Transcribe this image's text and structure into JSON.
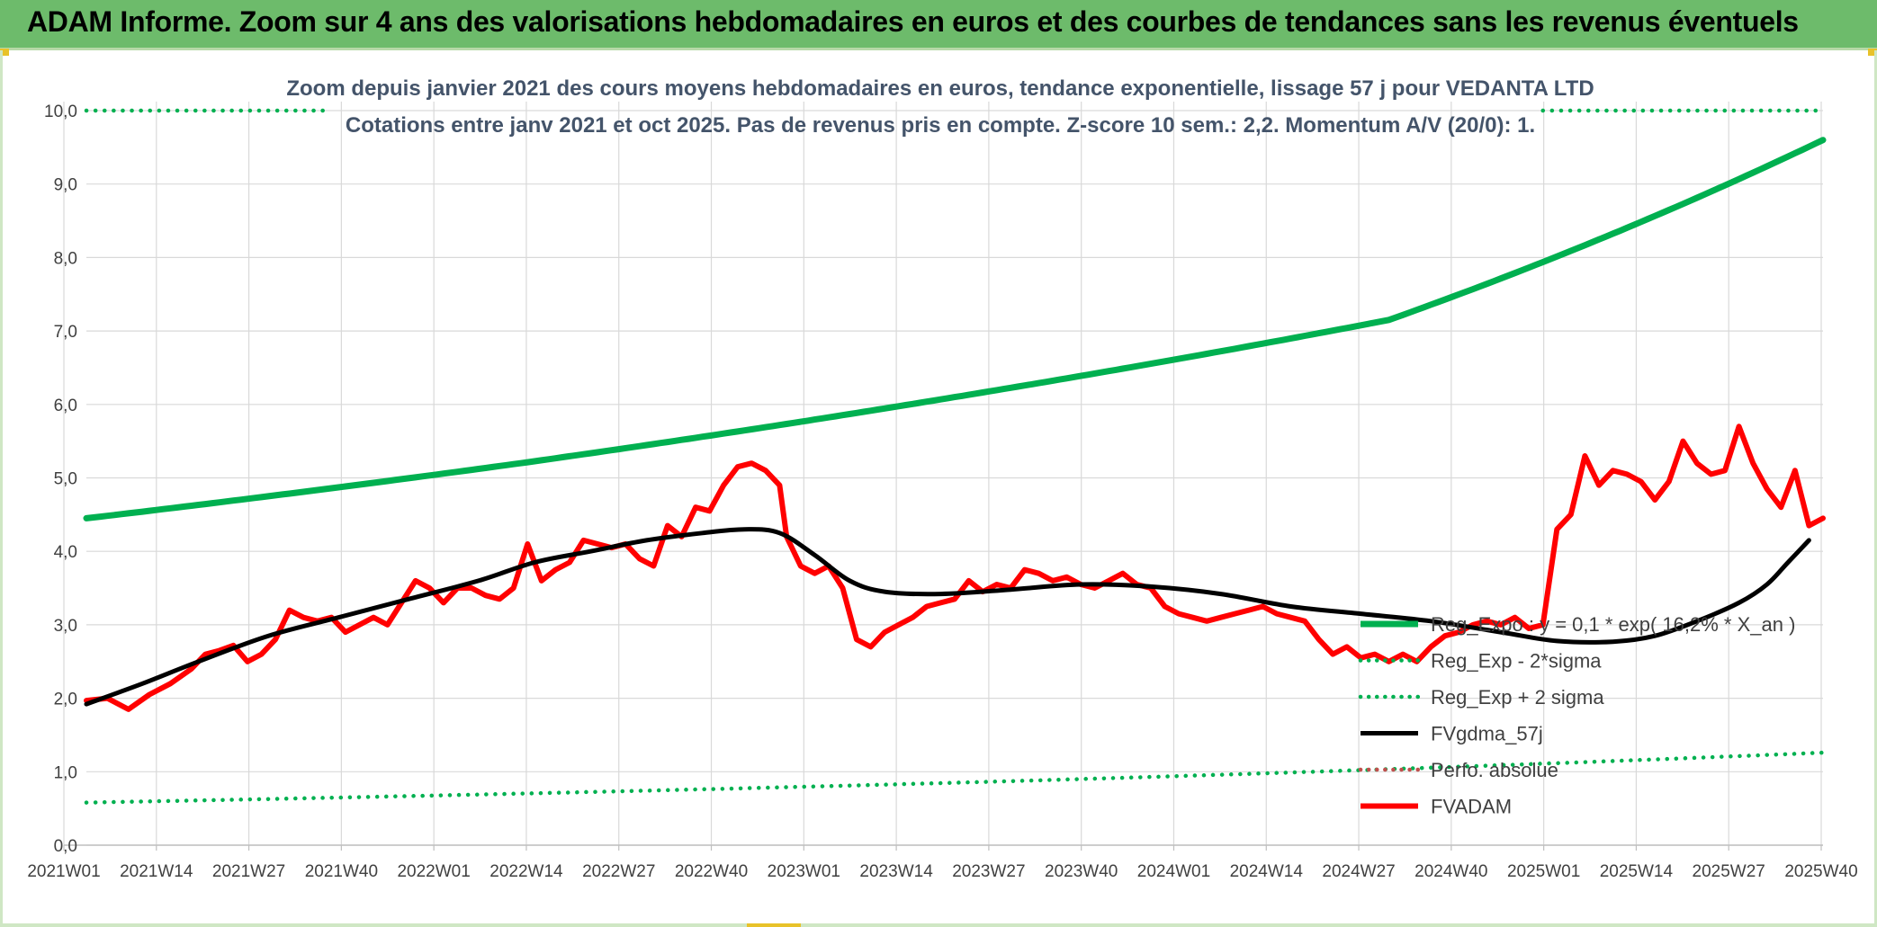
{
  "banner": {
    "title": "ADAM Informe. Zoom sur 4 ans des valorisations hebdomadaires en euros et des courbes de tendances sans les revenus éventuels"
  },
  "colors": {
    "banner": "#6dbb6b",
    "trend": "#00b050",
    "dotted": "#00b050",
    "smooth": "#000000",
    "price": "#ff0000",
    "perfo": "#c0504d",
    "grid": "#d9d9d9",
    "title_text": "#44546a",
    "axis_text": "#404040"
  },
  "chart_data": {
    "type": "line",
    "title_line1": "Zoom depuis janvier 2021 des cours moyens hebdomadaires en euros, tendance exponentielle, lissage 57 j pour VEDANTA LTD",
    "title_line2": "Cotations entre janv 2021 et oct 2025. Pas de revenus pris en compte. Z-score 10 sem.: 2,2. Momentum A/V (20/0): 1.",
    "ylim": [
      0,
      10
    ],
    "yticks": [
      "0,0",
      "1,0",
      "2,0",
      "3,0",
      "4,0",
      "5,0",
      "6,0",
      "7,0",
      "8,0",
      "9,0",
      "10,0"
    ],
    "xticks": [
      "2021W01",
      "2021W14",
      "2021W27",
      "2021W40",
      "2022W01",
      "2022W14",
      "2022W27",
      "2022W40",
      "2023W01",
      "2023W14",
      "2023W27",
      "2023W40",
      "2024W01",
      "2024W14",
      "2024W27",
      "2024W40",
      "2025W01",
      "2025W14",
      "2025W27",
      "2025W40"
    ],
    "week_count": 249,
    "legend": [
      {
        "name": "Reg_Expo : y = 0,1 * exp( 16,2% *  X_an )",
        "style": "solid-thick"
      },
      {
        "name": "Reg_Exp - 2*sigma",
        "style": "dotted"
      },
      {
        "name": "Reg_Exp + 2 sigma",
        "style": "dotted"
      },
      {
        "name": "FVgdma_57j",
        "style": "solid"
      },
      {
        "name": "Perfo. absolue",
        "style": "dotted-dark"
      },
      {
        "name": "FVADAM",
        "style": "solid-red"
      }
    ],
    "series": [
      {
        "name": "Reg_Expo",
        "keypoints": [
          [
            0,
            4.45
          ],
          [
            62,
            5.2
          ],
          [
            124,
            6.1
          ],
          [
            186,
            7.15
          ],
          [
            248,
            9.6
          ]
        ]
      },
      {
        "name": "Reg_Exp - 2*sigma",
        "keypoints": [
          [
            0,
            0.58
          ],
          [
            124,
            0.85
          ],
          [
            248,
            1.26
          ]
        ]
      },
      {
        "name": "Reg_Exp + 2 sigma",
        "keypoints": [
          [
            0,
            10.0
          ],
          [
            34,
            10.0
          ]
        ],
        "keypoints_right": [
          [
            208,
            10.0
          ],
          [
            248,
            10.0
          ]
        ]
      },
      {
        "name": "FVgdma_57j",
        "keypoints": [
          [
            0,
            1.92
          ],
          [
            8,
            2.2
          ],
          [
            16,
            2.5
          ],
          [
            26,
            2.85
          ],
          [
            36,
            3.1
          ],
          [
            46,
            3.35
          ],
          [
            56,
            3.6
          ],
          [
            64,
            3.85
          ],
          [
            72,
            4.0
          ],
          [
            80,
            4.15
          ],
          [
            88,
            4.25
          ],
          [
            94,
            4.3
          ],
          [
            99,
            4.25
          ],
          [
            104,
            3.95
          ],
          [
            109,
            3.6
          ],
          [
            114,
            3.45
          ],
          [
            122,
            3.42
          ],
          [
            132,
            3.48
          ],
          [
            142,
            3.55
          ],
          [
            152,
            3.52
          ],
          [
            162,
            3.42
          ],
          [
            172,
            3.25
          ],
          [
            182,
            3.15
          ],
          [
            192,
            3.05
          ],
          [
            202,
            2.9
          ],
          [
            210,
            2.78
          ],
          [
            218,
            2.77
          ],
          [
            224,
            2.85
          ],
          [
            230,
            3.05
          ],
          [
            236,
            3.3
          ],
          [
            240,
            3.55
          ],
          [
            243,
            3.85
          ],
          [
            246,
            4.15
          ]
        ]
      },
      {
        "name": "FVADAM",
        "keypoints": [
          [
            0,
            1.97
          ],
          [
            3,
            2.0
          ],
          [
            6,
            1.85
          ],
          [
            9,
            2.05
          ],
          [
            12,
            2.2
          ],
          [
            15,
            2.4
          ],
          [
            17,
            2.6
          ],
          [
            19,
            2.65
          ],
          [
            21,
            2.72
          ],
          [
            23,
            2.5
          ],
          [
            25,
            2.6
          ],
          [
            27,
            2.8
          ],
          [
            29,
            3.2
          ],
          [
            31,
            3.1
          ],
          [
            33,
            3.05
          ],
          [
            35,
            3.1
          ],
          [
            37,
            2.9
          ],
          [
            39,
            3.0
          ],
          [
            41,
            3.1
          ],
          [
            43,
            3.0
          ],
          [
            45,
            3.3
          ],
          [
            47,
            3.6
          ],
          [
            49,
            3.5
          ],
          [
            51,
            3.3
          ],
          [
            53,
            3.5
          ],
          [
            55,
            3.5
          ],
          [
            57,
            3.4
          ],
          [
            59,
            3.35
          ],
          [
            61,
            3.5
          ],
          [
            63,
            4.1
          ],
          [
            65,
            3.6
          ],
          [
            67,
            3.75
          ],
          [
            69,
            3.85
          ],
          [
            71,
            4.15
          ],
          [
            73,
            4.1
          ],
          [
            75,
            4.05
          ],
          [
            77,
            4.1
          ],
          [
            79,
            3.9
          ],
          [
            81,
            3.8
          ],
          [
            83,
            4.35
          ],
          [
            85,
            4.2
          ],
          [
            87,
            4.6
          ],
          [
            89,
            4.55
          ],
          [
            91,
            4.9
          ],
          [
            93,
            5.15
          ],
          [
            95,
            5.2
          ],
          [
            97,
            5.1
          ],
          [
            99,
            4.9
          ],
          [
            100,
            4.2
          ],
          [
            102,
            3.8
          ],
          [
            104,
            3.7
          ],
          [
            106,
            3.8
          ],
          [
            108,
            3.5
          ],
          [
            110,
            2.8
          ],
          [
            112,
            2.7
          ],
          [
            114,
            2.9
          ],
          [
            116,
            3.0
          ],
          [
            118,
            3.1
          ],
          [
            120,
            3.25
          ],
          [
            122,
            3.3
          ],
          [
            124,
            3.35
          ],
          [
            126,
            3.6
          ],
          [
            128,
            3.45
          ],
          [
            130,
            3.55
          ],
          [
            132,
            3.5
          ],
          [
            134,
            3.75
          ],
          [
            136,
            3.7
          ],
          [
            138,
            3.6
          ],
          [
            140,
            3.65
          ],
          [
            142,
            3.55
          ],
          [
            144,
            3.5
          ],
          [
            146,
            3.6
          ],
          [
            148,
            3.7
          ],
          [
            150,
            3.55
          ],
          [
            152,
            3.5
          ],
          [
            154,
            3.25
          ],
          [
            156,
            3.15
          ],
          [
            158,
            3.1
          ],
          [
            160,
            3.05
          ],
          [
            162,
            3.1
          ],
          [
            164,
            3.15
          ],
          [
            166,
            3.2
          ],
          [
            168,
            3.25
          ],
          [
            170,
            3.15
          ],
          [
            172,
            3.1
          ],
          [
            174,
            3.05
          ],
          [
            176,
            2.8
          ],
          [
            178,
            2.6
          ],
          [
            180,
            2.7
          ],
          [
            182,
            2.55
          ],
          [
            184,
            2.6
          ],
          [
            186,
            2.5
          ],
          [
            188,
            2.6
          ],
          [
            190,
            2.5
          ],
          [
            192,
            2.7
          ],
          [
            194,
            2.85
          ],
          [
            196,
            2.9
          ],
          [
            198,
            3.0
          ],
          [
            200,
            3.05
          ],
          [
            202,
            3.0
          ],
          [
            204,
            3.1
          ],
          [
            206,
            2.95
          ],
          [
            208,
            3.0
          ],
          [
            210,
            4.3
          ],
          [
            212,
            4.5
          ],
          [
            214,
            5.3
          ],
          [
            216,
            4.9
          ],
          [
            218,
            5.1
          ],
          [
            220,
            5.05
          ],
          [
            222,
            4.95
          ],
          [
            224,
            4.7
          ],
          [
            226,
            4.95
          ],
          [
            228,
            5.5
          ],
          [
            230,
            5.2
          ],
          [
            232,
            5.05
          ],
          [
            234,
            5.1
          ],
          [
            236,
            5.7
          ],
          [
            238,
            5.2
          ],
          [
            240,
            4.85
          ],
          [
            242,
            4.6
          ],
          [
            244,
            5.1
          ],
          [
            246,
            4.35
          ],
          [
            248,
            4.45
          ]
        ]
      }
    ]
  }
}
